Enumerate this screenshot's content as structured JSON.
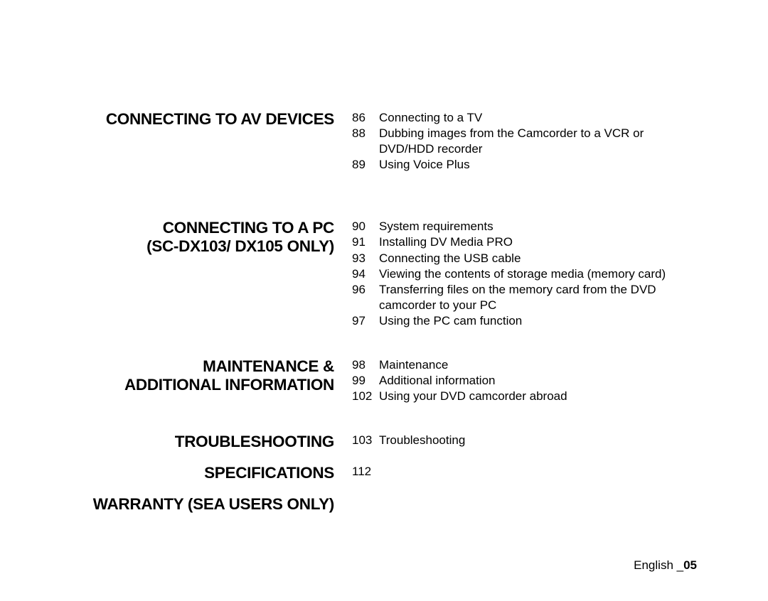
{
  "sections": {
    "av": {
      "heading": "CONNECTING TO AV DEVICES",
      "items": [
        {
          "page": "86",
          "text": "Connecting to a TV"
        },
        {
          "page": "88",
          "text": "Dubbing images from the Camcorder to a VCR or DVD/HDD recorder"
        },
        {
          "page": "89",
          "text": "Using Voice Plus"
        }
      ]
    },
    "pc": {
      "heading_l1": "CONNECTING TO A PC",
      "heading_l2": "(SC-DX103/ DX105 ONLY)",
      "items": [
        {
          "page": "90",
          "text": "System requirements"
        },
        {
          "page": "91",
          "text": "Installing DV Media PRO"
        },
        {
          "page": "93",
          "text": "Connecting the USB cable"
        },
        {
          "page": "94",
          "text": "Viewing the contents of storage media (memory card)"
        },
        {
          "page": "96",
          "text": "Transferring files on the memory card from the DVD camcorder to your PC"
        },
        {
          "page": "97",
          "text": "Using the PC cam function"
        }
      ]
    },
    "maint": {
      "heading_l1": "MAINTENANCE &",
      "heading_l2": "ADDITIONAL INFORMATION",
      "items": [
        {
          "page": "98",
          "text": "Maintenance"
        },
        {
          "page": "99",
          "text": "Additional information"
        },
        {
          "page": "102",
          "text": "Using your DVD camcorder abroad"
        }
      ]
    },
    "troub": {
      "heading": "TROUBLESHOOTING",
      "items": [
        {
          "page": "103",
          "text": "Troubleshooting"
        }
      ]
    },
    "spec": {
      "heading": "SPECIFICATIONS",
      "items": [
        {
          "page": "112",
          "text": ""
        }
      ]
    },
    "warranty": {
      "heading": "WARRANTY (SEA USERS ONLY)"
    }
  },
  "footer": {
    "lang": "English _",
    "page": "05"
  }
}
